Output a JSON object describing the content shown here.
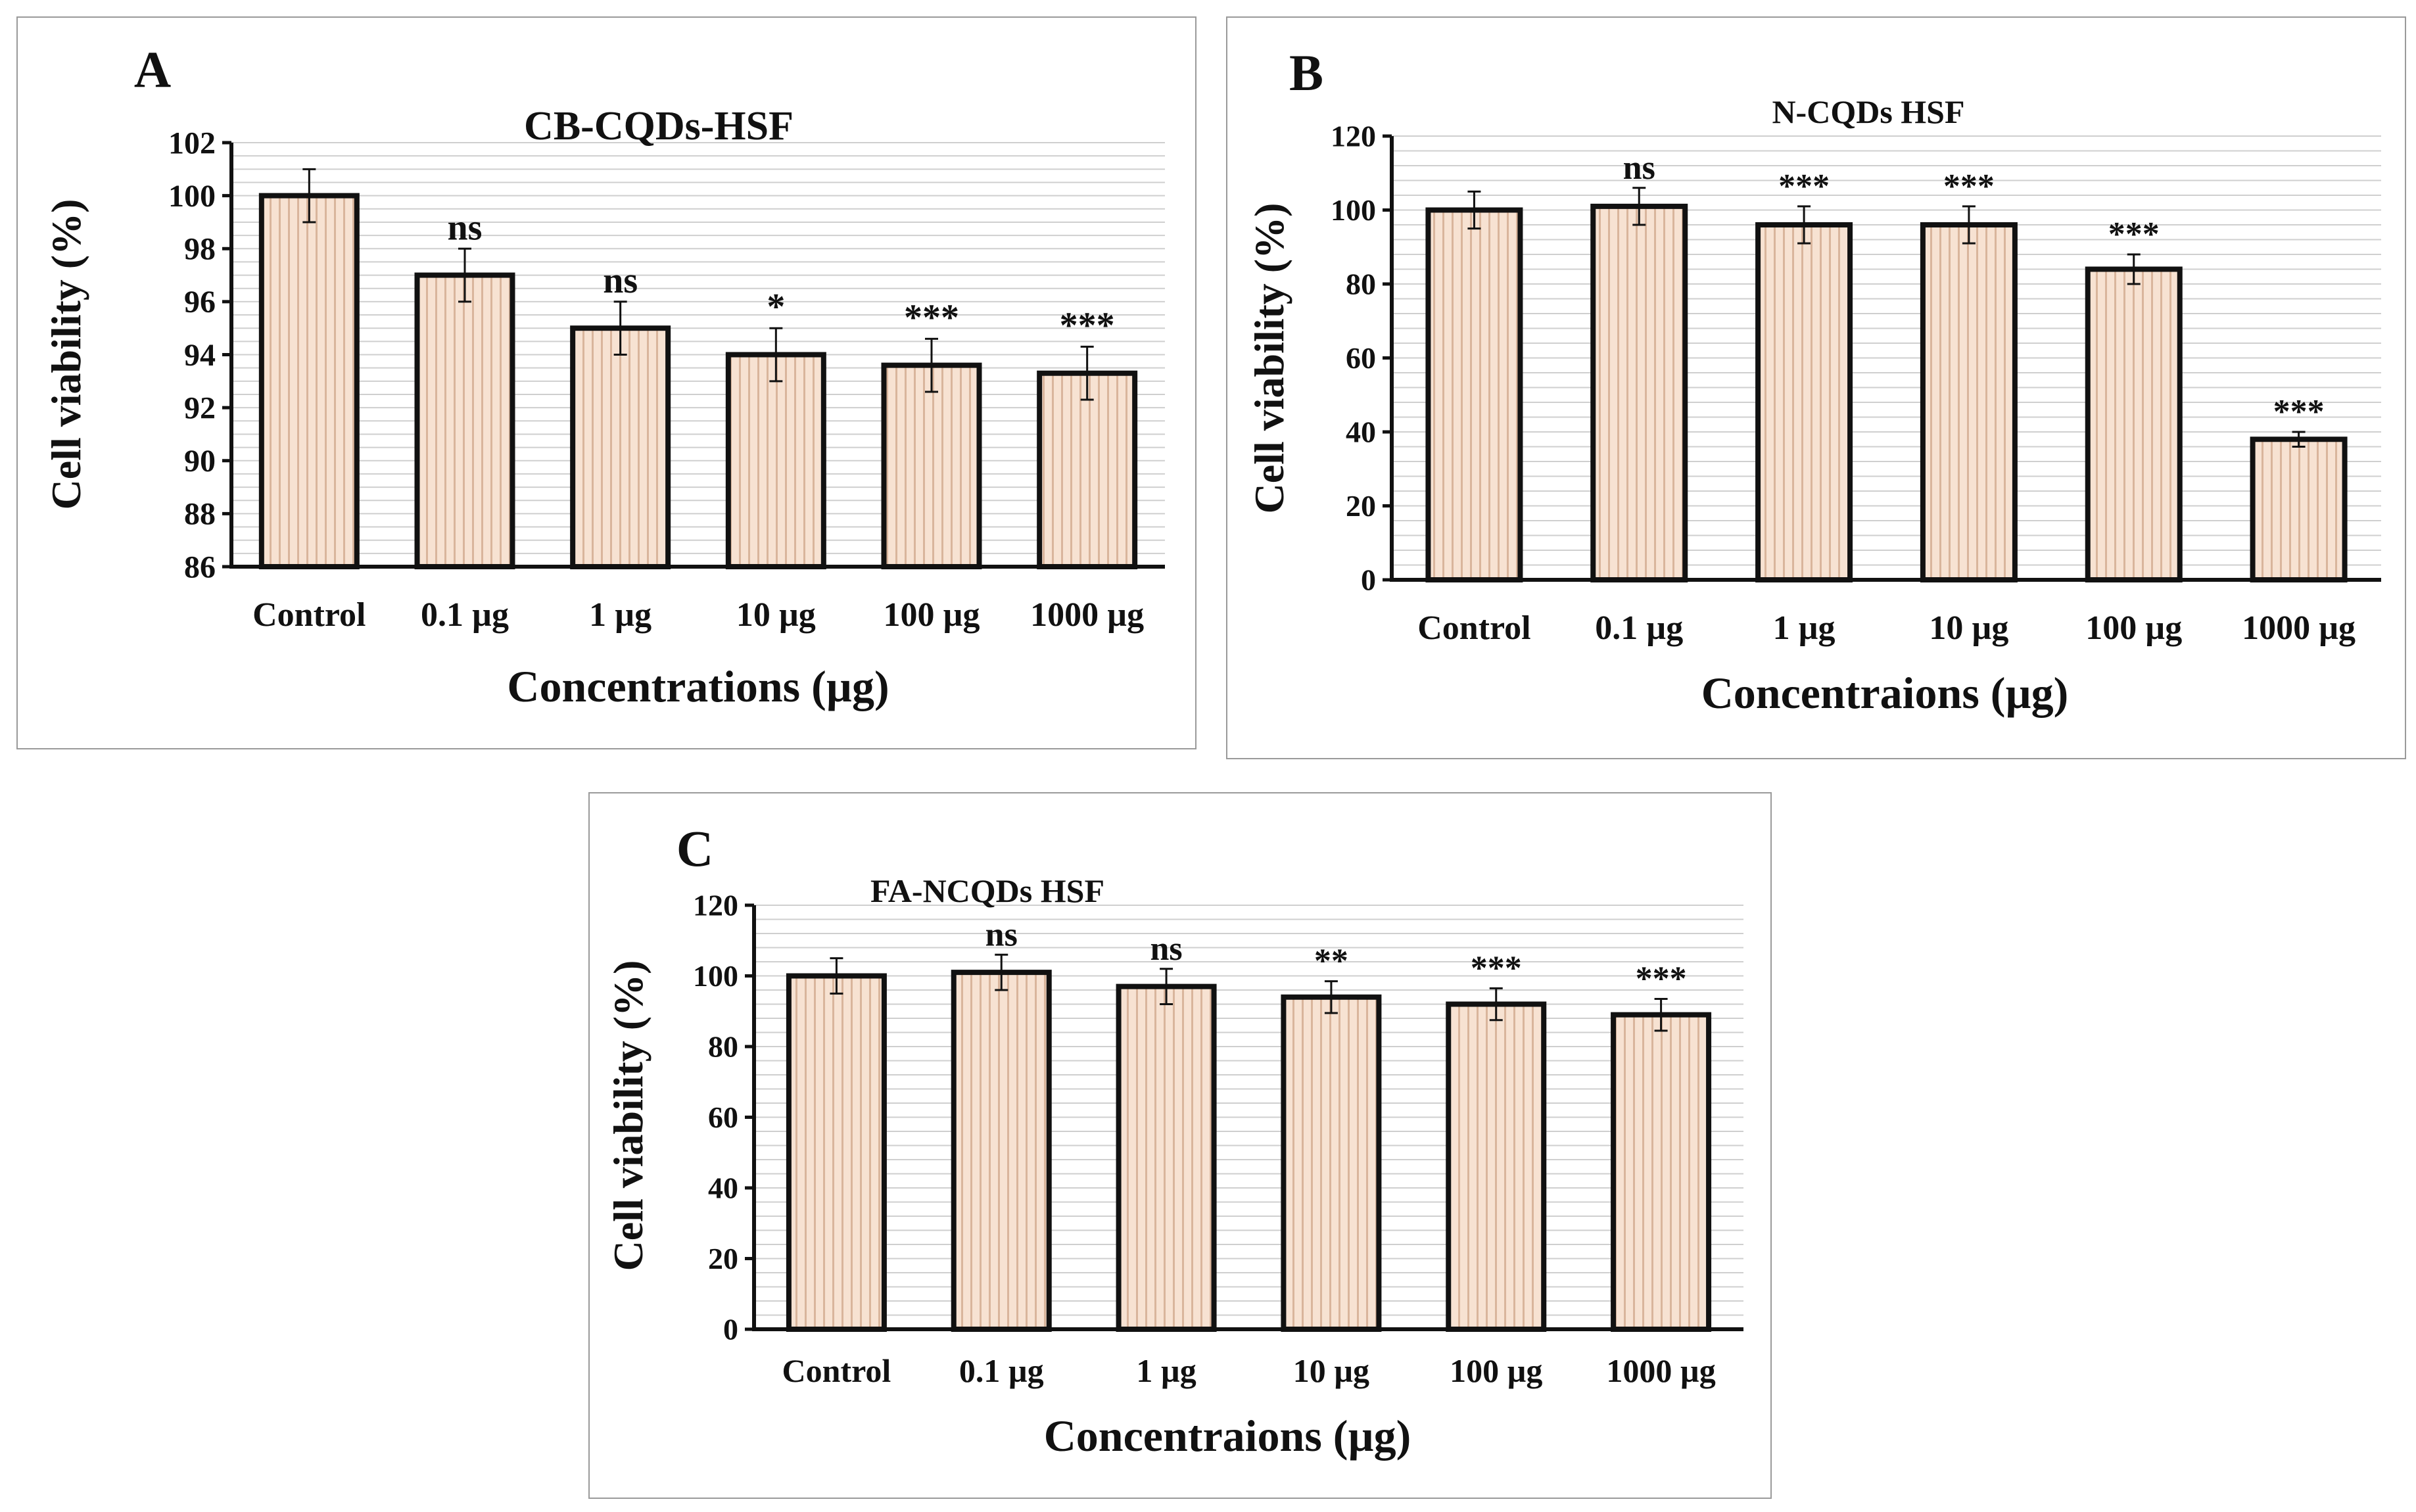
{
  "chart_data": [
    {
      "panel_letter": "A",
      "type": "bar",
      "title": "CB-CQDs-HSF",
      "xlabel": "Concentrations (µg)",
      "ylabel": "Cell viability (%)",
      "categories": [
        "Control",
        "0.1 µg",
        "1 µg",
        "10 µg",
        "100 µg",
        "1000 µg"
      ],
      "values": [
        100,
        97,
        95,
        94,
        93.6,
        93.3
      ],
      "errors": [
        1.0,
        1.0,
        1.0,
        1.0,
        1.0,
        1.0
      ],
      "significance": [
        "",
        "ns",
        "ns",
        "*",
        "***",
        "***"
      ],
      "ylim": [
        86,
        102
      ],
      "yticks": [
        "86",
        "88",
        "90",
        "92",
        "94",
        "96",
        "98",
        "100",
        "102"
      ],
      "minor_step": 0.5,
      "grid": true
    },
    {
      "panel_letter": "B",
      "type": "bar",
      "title": "N-CQDs HSF",
      "xlabel": "Concentraions (µg)",
      "ylabel": "Cell viability (%)",
      "categories": [
        "Control",
        "0.1 µg",
        "1 µg",
        "10 µg",
        "100 µg",
        "1000 µg"
      ],
      "values": [
        100,
        101,
        96,
        96,
        84,
        38
      ],
      "errors": [
        5,
        5,
        5,
        5,
        4,
        2
      ],
      "significance": [
        "",
        "ns",
        "***",
        "***",
        "***",
        "***"
      ],
      "ylim": [
        0,
        120
      ],
      "yticks": [
        "0",
        "20",
        "40",
        "60",
        "80",
        "100",
        "120"
      ],
      "minor_step": 4,
      "grid": true
    },
    {
      "panel_letter": "C",
      "type": "bar",
      "title": "FA-NCQDs HSF",
      "xlabel": "Concentraions (µg)",
      "ylabel": "Cell viability (%)",
      "categories": [
        "Control",
        "0.1 µg",
        "1 µg",
        "10 µg",
        "100 µg",
        "1000 µg"
      ],
      "values": [
        100,
        101,
        97,
        94,
        92,
        89
      ],
      "errors": [
        5,
        5,
        5,
        4.5,
        4.5,
        4.5
      ],
      "significance": [
        "",
        "ns",
        "ns",
        "**",
        "***",
        "***"
      ],
      "ylim": [
        0,
        120
      ],
      "yticks": [
        "0",
        "20",
        "40",
        "60",
        "80",
        "100",
        "120"
      ],
      "minor_step": 4,
      "grid": true
    }
  ],
  "colors": {
    "bar_fill": "#f7e2d2",
    "bar_stripe": "#d9b59c",
    "bar_edge": "#111111",
    "grid": "#cfcfcf",
    "axis": "#111111"
  }
}
